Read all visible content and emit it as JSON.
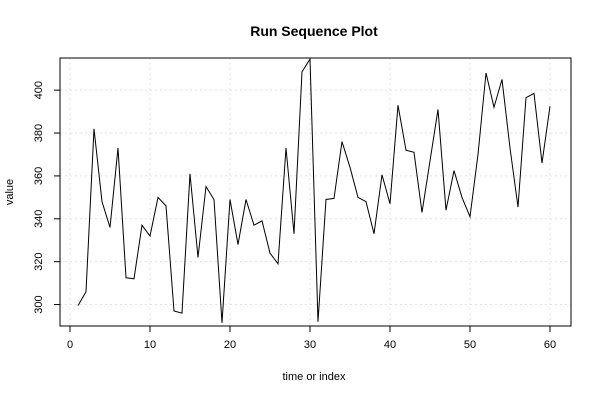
{
  "chart_data": {
    "type": "line",
    "title": "Run Sequence Plot",
    "xlabel": "time or index",
    "ylabel": "value",
    "xlim": [
      0,
      60
    ],
    "ylim": [
      290,
      415
    ],
    "xticks": [
      0,
      10,
      20,
      30,
      40,
      50,
      60
    ],
    "yticks": [
      300,
      320,
      340,
      360,
      380,
      400
    ],
    "grid": true,
    "series": [
      {
        "x": [
          1,
          2,
          3,
          4,
          5,
          6,
          7,
          8,
          9,
          10,
          11,
          12,
          13,
          14,
          15,
          16,
          17,
          18,
          19,
          20,
          21,
          22,
          23,
          24,
          25,
          26,
          27,
          28,
          29,
          30,
          31,
          32,
          33,
          34,
          35,
          36,
          37,
          38,
          39,
          40,
          41,
          42,
          43,
          44,
          45,
          46,
          47,
          48,
          49,
          50,
          51,
          52,
          53,
          54,
          55,
          56,
          57,
          58,
          59,
          60
        ],
        "values": [
          299.5,
          306,
          382,
          348,
          336,
          373,
          312.5,
          312,
          337,
          332,
          350,
          346,
          297,
          296,
          361,
          322,
          355,
          349,
          291.5,
          349,
          328,
          349,
          337,
          339,
          324,
          319,
          373,
          333,
          408.5,
          414.5,
          292,
          349,
          349.5,
          376,
          364,
          350,
          348,
          333,
          360.5,
          347,
          393,
          372,
          371,
          343,
          367,
          391,
          344,
          362.5,
          350,
          341,
          370,
          408,
          392,
          405,
          373,
          345.5,
          396.5,
          398.5,
          366,
          392.5
        ]
      }
    ],
    "colors": {
      "line": "#000000",
      "grid": "#e0e0e0",
      "axis": "#000000"
    }
  }
}
